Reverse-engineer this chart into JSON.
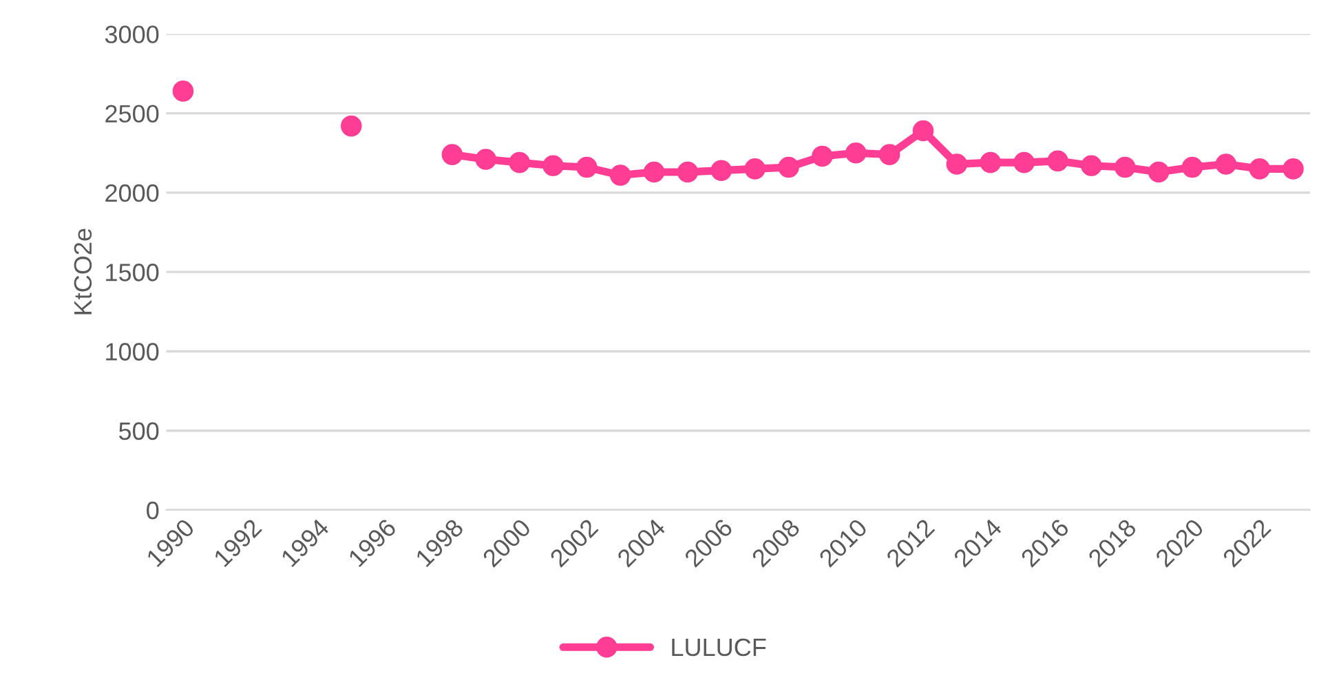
{
  "chart_data": {
    "type": "line",
    "ylabel": "KtCO2e",
    "categories": [
      "1990",
      null,
      "1992",
      null,
      "1994",
      null,
      "1996",
      null,
      "1998",
      null,
      "2000",
      null,
      "2002",
      null,
      "2004",
      null,
      "2006",
      null,
      "2008",
      null,
      "2010",
      null,
      "2012",
      null,
      "2014",
      null,
      "2016",
      null,
      "2018",
      null,
      "2020",
      null,
      "2022",
      null
    ],
    "series": [
      {
        "name": "LULUCF",
        "color": "#ff3d94",
        "values": [
          2640,
          null,
          null,
          null,
          null,
          2420,
          null,
          null,
          2240,
          2210,
          2190,
          2170,
          2160,
          2110,
          2130,
          2130,
          2140,
          2150,
          2160,
          2230,
          2250,
          2240,
          2390,
          2180,
          2190,
          2190,
          2200,
          2170,
          2160,
          2130,
          2160,
          2180,
          2150,
          2150
        ]
      }
    ],
    "ylim": [
      0,
      3000
    ],
    "yticks": [
      0,
      500,
      1000,
      1500,
      2000,
      2500,
      3000
    ],
    "grid": "y",
    "legend": "bottom",
    "marker": "circle",
    "line_style": "solid"
  }
}
